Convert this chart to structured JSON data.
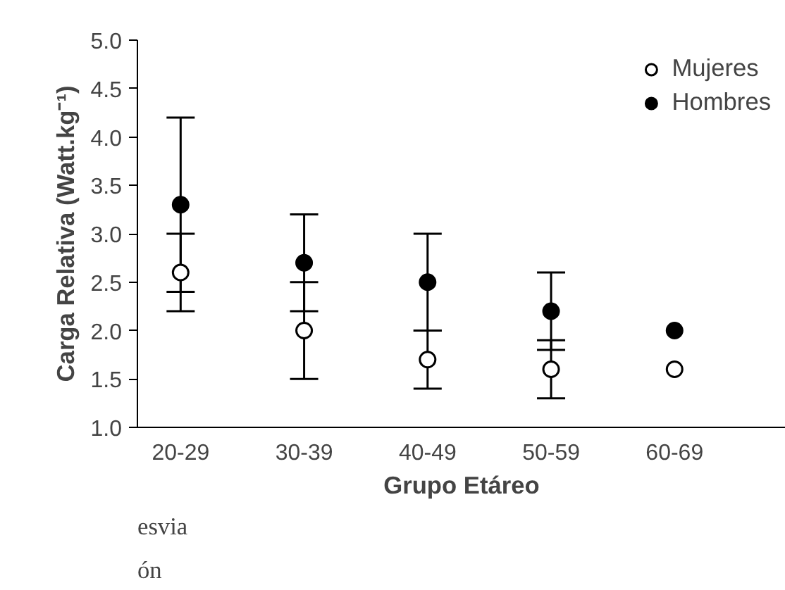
{
  "chart_data": {
    "type": "scatter",
    "xlabel": "Grupo Etáreo",
    "ylabel": "Carga Relativa (Watt.kg⁻¹)",
    "categories": [
      "20-29",
      "30-39",
      "40-49",
      "50-59",
      "60-69"
    ],
    "series": [
      {
        "name": "Mujeres",
        "color": "#ffffff",
        "values": [
          2.6,
          2.0,
          1.7,
          1.6,
          1.6
        ],
        "errors": [
          0.4,
          0.5,
          0.3,
          0.3,
          null
        ]
      },
      {
        "name": "Hombres",
        "color": "#000000",
        "values": [
          3.3,
          2.7,
          2.5,
          2.2,
          2.0
        ],
        "errors": [
          0.9,
          0.5,
          0.5,
          0.4,
          null
        ]
      }
    ],
    "ylim": [
      1.0,
      5.0
    ],
    "yticks": [
      {
        "value": 1.0,
        "label": "1.0"
      },
      {
        "value": 1.5,
        "label": "1.5"
      },
      {
        "value": 2.0,
        "label": "2.0"
      },
      {
        "value": 2.5,
        "label": "2.5"
      },
      {
        "value": 3.0,
        "label": "3.0"
      },
      {
        "value": 3.5,
        "label": "3.5"
      },
      {
        "value": 4.0,
        "label": "4.0"
      },
      {
        "value": 4.5,
        "label": "4.5"
      },
      {
        "value": 5.0,
        "label": "5.0"
      }
    ],
    "marker": "circle",
    "grid": false,
    "legend": "top right",
    "annotations": [
      "esvia",
      "ón"
    ]
  }
}
